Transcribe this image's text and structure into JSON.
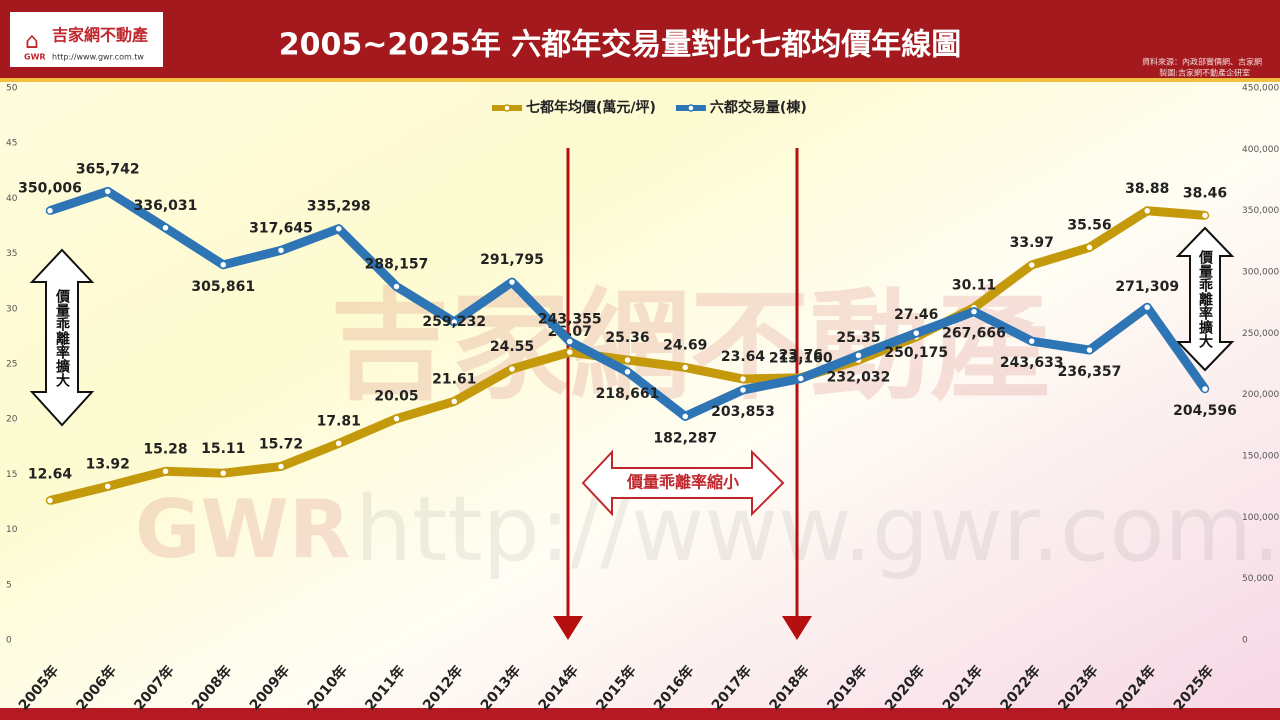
{
  "header": {
    "logo_name": "吉家網不動產",
    "logo_short": "GWR",
    "logo_url": "http://www.gwr.com.tw",
    "source": "資料來源：內政部實價網、吉家網",
    "credit": "製圖:吉家網不動產企研室"
  },
  "watermark": {
    "name": "吉家網不動產",
    "short": "GWR",
    "url": "http://www.gwr.com.tw"
  },
  "chart_data": {
    "type": "line",
    "title": "2005~2025年 六都年交易量對比七都均價年線圖",
    "categories": [
      "2005年",
      "2006年",
      "2007年",
      "2008年",
      "2009年",
      "2010年",
      "2011年",
      "2012年",
      "2013年",
      "2014年",
      "2015年",
      "2016年",
      "2017年",
      "2018年",
      "2019年",
      "2020年",
      "2021年",
      "2022年",
      "2023年",
      "2024年",
      "2025年"
    ],
    "series": [
      {
        "name": "七都年均價(萬元/坪)",
        "color": "#c49a0c",
        "values": [
          12.64,
          13.92,
          15.28,
          15.11,
          15.72,
          17.81,
          20.05,
          21.61,
          24.55,
          26.07,
          25.36,
          24.69,
          23.64,
          23.76,
          25.35,
          27.46,
          30.11,
          33.97,
          35.56,
          38.88,
          38.46
        ]
      },
      {
        "name": "六都交易量(棟)",
        "color": "#2e75b6",
        "axis": "y2",
        "values": [
          350006,
          365742,
          336031,
          305861,
          317645,
          335298,
          288157,
          259232,
          291795,
          243355,
          218661,
          182287,
          203853,
          213160,
          232032,
          250175,
          267666,
          243633,
          236357,
          271309,
          204596
        ],
        "value_labels": [
          "350,006",
          "365,742",
          "336,031",
          "305,861",
          "317,645",
          "335,298",
          "288,157",
          "259,232",
          "291,795",
          "243,355",
          "218,661",
          "182,287",
          "203,853",
          "213,160",
          "232,032",
          "250,175",
          "267,666",
          "243,633",
          "236,357",
          "271,309",
          "204,596"
        ]
      }
    ],
    "ylim": [
      0,
      50
    ],
    "yticks": [
      0,
      5,
      10,
      15,
      20,
      25,
      30,
      35,
      40,
      45,
      50
    ],
    "y2lim": [
      0,
      450000
    ],
    "y2ticks": [
      0,
      {
        "value": 50000,
        "label": "50,000"
      },
      {
        "value": 100000,
        "label": "100,000"
      },
      {
        "value": 150000,
        "label": "150,000"
      },
      {
        "value": 200000,
        "label": "200,000"
      },
      {
        "value": 250000,
        "label": "250,000"
      },
      {
        "value": 300000,
        "label": "300,000"
      },
      {
        "value": 350000,
        "label": "350,000"
      },
      {
        "value": 400000,
        "label": "400,000"
      },
      {
        "value": 450000,
        "label": "450,000"
      }
    ],
    "legend": "top",
    "annotations": [
      "價量乖離率擴大",
      "價量乖離率縮小",
      "價量乖離率擴大"
    ]
  }
}
